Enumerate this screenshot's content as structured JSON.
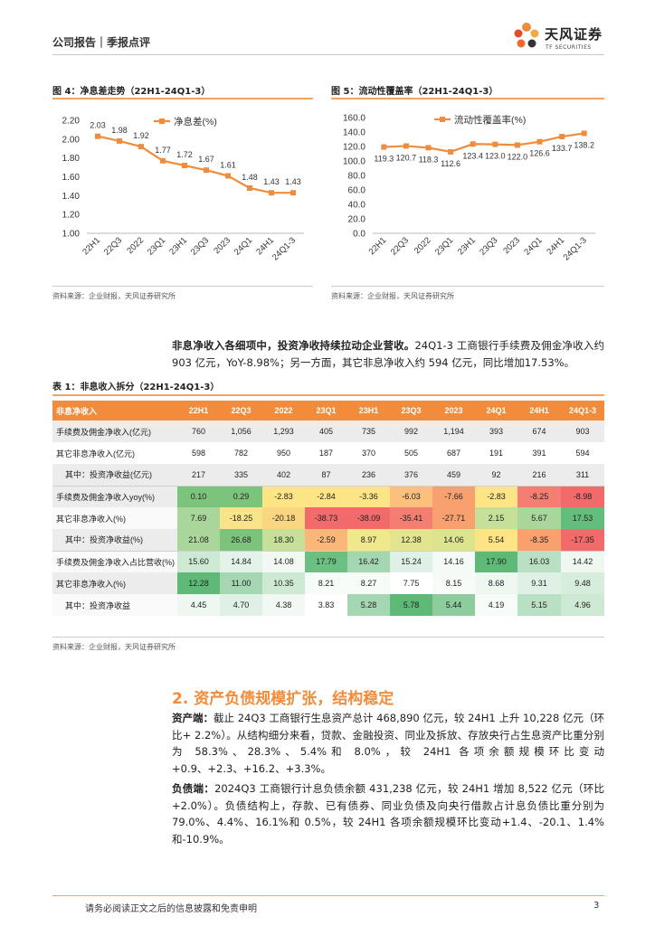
{
  "header": {
    "title": "公司报告｜季报点评",
    "logo_cn": "天风证券",
    "logo_en": "TF SECURITIES"
  },
  "fig4": {
    "title": "图 4：净息差走势（22H1-24Q1-3）",
    "source": "资料来源：企业财报，天风证券研究所"
  },
  "fig5": {
    "title": "图 5：流动性覆盖率（22H1-24Q1-3）",
    "source": "资料来源：企业财报，天风证券研究所"
  },
  "chart_data": [
    {
      "type": "line",
      "title": "",
      "legend": "净息差(%)",
      "color": "#f08c3c",
      "categories": [
        "22H1",
        "22Q3",
        "2022",
        "23Q1",
        "23H1",
        "23Q3",
        "2023",
        "24Q1",
        "24H1",
        "24Q1-3"
      ],
      "values": [
        2.03,
        1.98,
        1.92,
        1.77,
        1.72,
        1.67,
        1.61,
        1.48,
        1.43,
        1.43
      ],
      "labels": [
        "2.03",
        "1.98",
        "1.92",
        "1.77",
        "1.72",
        "1.67",
        "1.61",
        "1.48",
        "1.43",
        "1.43"
      ],
      "ylim": [
        1.0,
        2.2
      ],
      "yticks": [
        "1.00",
        "1.20",
        "1.40",
        "1.60",
        "1.80",
        "2.00",
        "2.20"
      ],
      "grid": false,
      "legend_position": "top-center"
    },
    {
      "type": "line",
      "title": "",
      "legend": "流动性覆盖率(%)",
      "color": "#f08c3c",
      "categories": [
        "22H1",
        "22Q3",
        "2022",
        "23Q1",
        "23H1",
        "23Q3",
        "2023",
        "24Q1",
        "24H1",
        "24Q1-3"
      ],
      "values": [
        119.3,
        120.7,
        118.3,
        112.6,
        123.4,
        123.0,
        122.0,
        126.6,
        133.7,
        138.2
      ],
      "labels": [
        "119.3",
        "120.7",
        "118.3",
        "112.6",
        "123.4",
        "123.0",
        "122.0",
        "126.6",
        "133.7",
        "138.2"
      ],
      "ylim": [
        0,
        160
      ],
      "yticks": [
        "0.0",
        "20.0",
        "40.0",
        "60.0",
        "80.0",
        "100.0",
        "120.0",
        "140.0",
        "160.0"
      ],
      "grid": false,
      "legend_position": "top-center"
    }
  ],
  "para1": {
    "bold": "非息净收入各细项中，投资净收持续拉动企业营收。",
    "text": "24Q1-3 工商银行手续费及佣金净收入约903 亿元，YoY-8.98%；另一方面，其它非息净收入约 594 亿元，同比增加17.53%。"
  },
  "table": {
    "title": "表 1：非息收入拆分（22H1-24Q1-3）",
    "source": "资料来源：企业财报，天风证券研究所",
    "headers": [
      "非息净收入",
      "22H1",
      "22Q3",
      "2022",
      "23Q1",
      "23H1",
      "23Q3",
      "2023",
      "24Q1",
      "24H1",
      "24Q1-3"
    ],
    "rows": [
      {
        "label": "手续费及佣金净收入(亿元)",
        "values": [
          "760",
          "1,056",
          "1,293",
          "405",
          "735",
          "992",
          "1,194",
          "393",
          "674",
          "903"
        ],
        "colors": [
          "",
          "",
          "",
          "",
          "",
          "",
          "",
          "",
          "",
          ""
        ]
      },
      {
        "label": "其它非息净收入(亿元)",
        "values": [
          "598",
          "782",
          "950",
          "187",
          "370",
          "505",
          "687",
          "191",
          "391",
          "594"
        ],
        "colors": [
          "",
          "",
          "",
          "",
          "",
          "",
          "",
          "",
          "",
          ""
        ]
      },
      {
        "label": "其中：投资净收益(亿元)",
        "values": [
          "217",
          "335",
          "402",
          "87",
          "236",
          "376",
          "459",
          "92",
          "216",
          "311"
        ],
        "colors": [
          "",
          "",
          "",
          "",
          "",
          "",
          "",
          "",
          "",
          ""
        ]
      },
      {
        "label": "手续费及佣金净收入yoy(%)",
        "values": [
          "0.10",
          "0.29",
          "-2.83",
          "-2.84",
          "-3.36",
          "-6.03",
          "-7.66",
          "-2.83",
          "-8.25",
          "-8.98"
        ],
        "colors": [
          "#7cc47c",
          "#7cc47c",
          "#fde585",
          "#fde585",
          "#fde585",
          "#fbc07c",
          "#f8a06e",
          "#fde585",
          "#f57e72",
          "#f36a6a"
        ]
      },
      {
        "label": "其它非息净收入(%)",
        "values": [
          "7.69",
          "-18.25",
          "-20.18",
          "-38.73",
          "-38.09",
          "-35.41",
          "-27.71",
          "2.15",
          "5.67",
          "17.53"
        ],
        "colors": [
          "#a9d69a",
          "#fbe38a",
          "#fbd680",
          "#f36a6a",
          "#f36a6a",
          "#f57e72",
          "#f8a06e",
          "#c6e09a",
          "#a9d69a",
          "#63be7b"
        ]
      },
      {
        "label": "其中：投资净收益(%)",
        "values": [
          "21.08",
          "26.68",
          "18.30",
          "-2.59",
          "8.97",
          "12.38",
          "14.06",
          "5.54",
          "-8.35",
          "-17.35"
        ],
        "colors": [
          "#a9d69a",
          "#7cc47c",
          "#c6e09a",
          "#fbb77a",
          "#f1e88c",
          "#e3e58e",
          "#dce48f",
          "#fde585",
          "#f8a06e",
          "#f36a6a"
        ]
      },
      {
        "label": "手续费及佣金净收入占比营收(%)",
        "values": [
          "15.60",
          "14.84",
          "14.08",
          "17.79",
          "16.42",
          "15.24",
          "14.16",
          "17.90",
          "16.03",
          "14.42"
        ],
        "colors": [
          "#cde9d4",
          "#e4f3e8",
          "#f2f9f4",
          "#6bbf82",
          "#a3d6b1",
          "#dff1e4",
          "#f4faf6",
          "#5eb977",
          "#b9e0c3",
          "#eef8f1"
        ]
      },
      {
        "label": "其它非息净收入(%)",
        "values": [
          "12.28",
          "11.00",
          "10.35",
          "8.21",
          "8.27",
          "7.75",
          "8.15",
          "8.68",
          "9.31",
          "9.48"
        ],
        "colors": [
          "#5eb977",
          "#a3d6b1",
          "#cde9d4",
          "#f6fbf8",
          "#f6fbf8",
          "#ffffff",
          "#f6fbf8",
          "#eef8f1",
          "#dff1e4",
          "#d7eddc"
        ]
      },
      {
        "label": "其中：投资净收益",
        "values": [
          "4.45",
          "4.70",
          "4.38",
          "3.83",
          "5.28",
          "5.78",
          "5.44",
          "4.19",
          "5.15",
          "4.96"
        ],
        "colors": [
          "#eef8f1",
          "#dff1e4",
          "#f2f9f4",
          "#ffffff",
          "#a3d6b1",
          "#5eb977",
          "#8ccc9d",
          "#f6fbf8",
          "#b9e0c3",
          "#cde9d4"
        ]
      }
    ]
  },
  "section2": {
    "heading": "2. 资产负债规模扩张，结构稳定",
    "asset_bold": "资产端：",
    "asset_text": "截止 24Q3 工商银行生息资产总计 468,890 亿元，较 24H1 上升 10,228 亿元（环比+ 2.2%）。从结构细分来看，贷款、金融投资、同业及拆放、存放央行占生息资产比重分别为 58.3%、28.3%、5.4%和 8.0%，较 24H1 各项余额规模环比变动+0.9、+2.3、+16.2、+3.3%。",
    "liab_bold": "负债端：",
    "liab_text": "2024Q3 工商银行计息负债余额 431,238 亿元，较 24H1 增加 8,522 亿元（环比+2.0%）。负债结构上，存款、已有债券、同业负债及向央行借款占计息负债比重分别为 79.0%、4.4%、16.1%和 0.5%，较 24H1 各项余额规模环比变动+1.4、-20.1、1.4%和-10.9%。"
  },
  "footer": {
    "disclaimer": "请务必阅读正文之后的信息披露和免责申明",
    "page": "3"
  }
}
